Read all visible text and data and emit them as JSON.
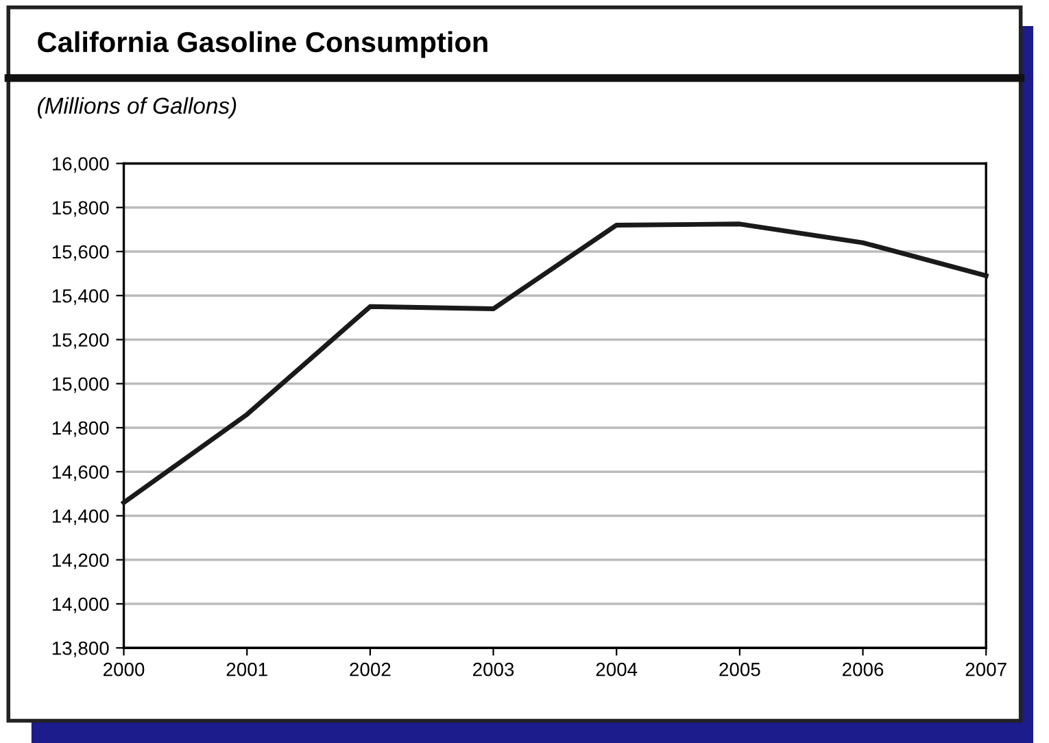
{
  "chart_data": {
    "type": "line",
    "title": "California Gasoline Consumption",
    "subtitle": "(Millions of Gallons)",
    "x": [
      2000,
      2001,
      2002,
      2003,
      2004,
      2005,
      2006,
      2007
    ],
    "series": [
      {
        "color": "#1a1a1a",
        "values": [
          14460,
          14860,
          15350,
          15340,
          15720,
          15725,
          15640,
          15490
        ]
      }
    ],
    "xlim": [
      2000,
      2007
    ],
    "xticks": [
      2000,
      2001,
      2002,
      2003,
      2004,
      2005,
      2006,
      2007
    ],
    "ylim": [
      13800,
      16000
    ],
    "yticks": [
      {
        "value": 13800,
        "label": "13,800"
      },
      {
        "value": 14000,
        "label": "14,000"
      },
      {
        "value": 14200,
        "label": "14,200"
      },
      {
        "value": 14400,
        "label": "14,400"
      },
      {
        "value": 14600,
        "label": "14,600"
      },
      {
        "value": 14800,
        "label": "14,800"
      },
      {
        "value": 15000,
        "label": "15,000"
      },
      {
        "value": 15200,
        "label": "15,200"
      },
      {
        "value": 15400,
        "label": "15,400"
      },
      {
        "value": 15600,
        "label": "15,600"
      },
      {
        "value": 15800,
        "label": "15,800"
      },
      {
        "value": 16000,
        "label": "16,000"
      }
    ],
    "grid": "y",
    "marker": "none",
    "line_style": "solid",
    "legend": false
  }
}
